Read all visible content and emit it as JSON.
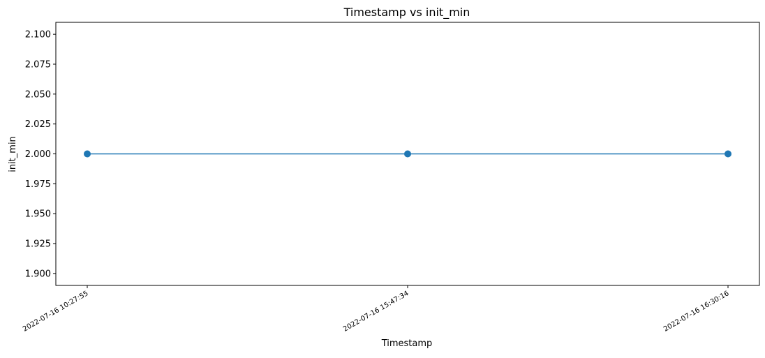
{
  "chart_data": {
    "type": "line",
    "title": "Timestamp vs init_min",
    "xlabel": "Timestamp",
    "ylabel": "init_min",
    "categories": [
      "2022-07-16 10:27:55",
      "2022-07-16 15:47:34",
      "2022-07-16 16:30:16"
    ],
    "series": [
      {
        "values": [
          2.0,
          2.0,
          2.0
        ]
      }
    ],
    "ylim": [
      1.89,
      2.11
    ],
    "yticks": [
      "1.900",
      "1.925",
      "1.950",
      "1.975",
      "2.000",
      "2.025",
      "2.050",
      "2.075",
      "2.100"
    ],
    "ytick_values": [
      1.9,
      1.925,
      1.95,
      1.975,
      2.0,
      2.025,
      2.05,
      2.075,
      2.1
    ],
    "grid": false,
    "legend": "none",
    "markers": true,
    "colors": {
      "line": "#1f77b4",
      "axes": "#000000"
    }
  }
}
